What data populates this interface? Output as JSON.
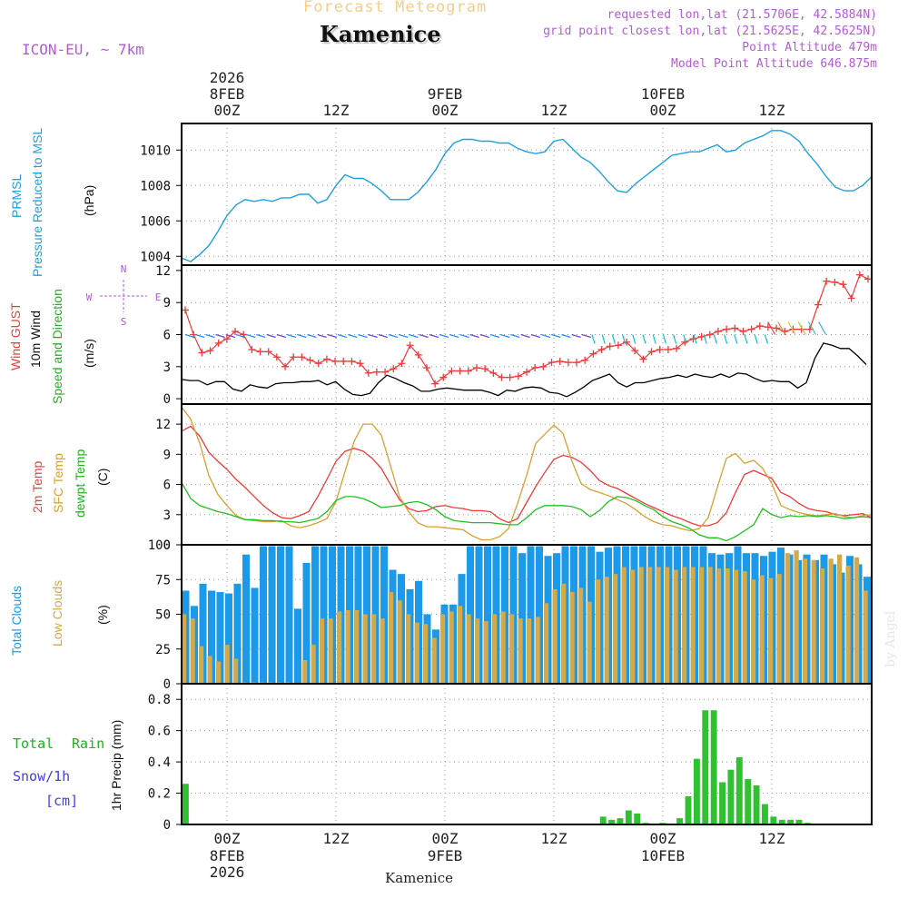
{
  "header": {
    "title": "Forecast Meteogram",
    "location": "Kamenice",
    "model": "ICON-EU, ~ 7km",
    "requested": "requested lon,lat (21.5706E, 42.5884N)",
    "gridpoint": "grid point closest lon,lat (21.5625E, 42.5625N)",
    "altitude": "Point Altitude 479m",
    "model_altitude": "Model Point Altitude 646.875m",
    "footer_location": "Kamenice",
    "watermark": "by Angel"
  },
  "time_axis": {
    "year": "2026",
    "top_labels": [
      "8FEB",
      "00Z",
      "12Z",
      "9FEB",
      "00Z",
      "12Z",
      "10FEB",
      "00Z",
      "12Z"
    ],
    "ticks": [
      {
        "hour": 24,
        "label": "00Z",
        "date": "8FEB",
        "year": "2026"
      },
      {
        "hour": 36,
        "label": "12Z",
        "date": "",
        "year": ""
      },
      {
        "hour": 48,
        "label": "00Z",
        "date": "9FEB",
        "year": ""
      },
      {
        "hour": 60,
        "label": "12Z",
        "date": "",
        "year": ""
      },
      {
        "hour": 72,
        "label": "00Z",
        "date": "10FEB",
        "year": ""
      },
      {
        "hour": 84,
        "label": "12Z",
        "date": "",
        "year": ""
      }
    ],
    "range": [
      19,
      95
    ]
  },
  "labels": {
    "p1": [
      "PRMSL",
      "Pressure Reduced to MSL",
      "(hPa)"
    ],
    "p2": [
      "Wind GUST",
      "10m Wind",
      "Speed and Direction",
      "(m/s)"
    ],
    "p2_compass": {
      "n": "N",
      "s": "S",
      "w": "W",
      "e": "E"
    },
    "p3": [
      "2m Temp",
      "SFC Temp",
      "dewpt Temp",
      "(C)"
    ],
    "p4": [
      "Total Clouds",
      "Low Clouds",
      "(%)"
    ],
    "p5": [
      "Total",
      "Rain",
      "Snow/1h",
      "[cm]",
      "1hr Precip (mm)"
    ]
  },
  "colors": {
    "pressure": "#1fa0e0",
    "gust": "#ef3b3b",
    "wind": "#000000",
    "windlabel": "#20b020",
    "temp2m": "#ef3b3b",
    "tempsfc": "#d8a030",
    "dewpt": "#20c020",
    "totalclouds": "#1a9ae8",
    "lowclouds": "#d4a94a",
    "rain": "#2ec22e",
    "snow": "#4040e0",
    "purple": "#b35bd6"
  },
  "chart_data": [
    {
      "type": "line",
      "title": "PRMSL Pressure Reduced to MSL",
      "ylabel": "hPa",
      "ylim": [
        1003.5,
        1011.5
      ],
      "yticks": [
        1004,
        1006,
        1008,
        1010
      ],
      "series": [
        {
          "name": "PRMSL",
          "x": [
            19,
            20,
            21,
            22,
            23,
            24,
            25,
            26,
            27,
            28,
            29,
            30,
            31,
            32,
            33,
            34,
            35,
            36,
            37,
            38,
            39,
            40,
            41,
            42,
            43,
            44,
            45,
            46,
            47,
            48,
            49,
            50,
            51,
            52,
            53,
            54,
            55,
            56,
            57,
            58,
            59,
            60,
            61,
            62,
            63,
            64,
            65,
            66,
            67,
            68,
            69,
            70,
            71,
            72,
            73,
            74,
            75,
            76,
            77,
            78,
            79,
            80,
            81,
            82,
            83,
            84,
            85,
            86,
            87,
            88,
            89,
            90,
            91,
            92,
            93,
            94,
            95
          ],
          "values": [
            1003.9,
            1003.7,
            1004.1,
            1004.6,
            1005.4,
            1006.3,
            1006.9,
            1007.2,
            1007.1,
            1007.2,
            1007.1,
            1007.3,
            1007.3,
            1007.5,
            1007.5,
            1007.0,
            1007.2,
            1008.0,
            1008.6,
            1008.4,
            1008.4,
            1008.1,
            1007.7,
            1007.2,
            1007.2,
            1007.2,
            1007.6,
            1008.2,
            1008.9,
            1009.8,
            1010.4,
            1010.6,
            1010.6,
            1010.5,
            1010.5,
            1010.4,
            1010.4,
            1010.1,
            1009.9,
            1009.8,
            1009.9,
            1010.5,
            1010.6,
            1010.1,
            1009.6,
            1009.3,
            1008.8,
            1008.2,
            1007.7,
            1007.6,
            1008.1,
            1008.5,
            1008.9,
            1009.3,
            1009.7,
            1009.8,
            1009.9,
            1009.9,
            1010.1,
            1010.3,
            1009.9,
            1010.0,
            1010.4,
            1010.6,
            1010.8,
            1011.1,
            1011.1,
            1010.9,
            1010.5,
            1009.8,
            1009.2,
            1008.5,
            1007.9,
            1007.7,
            1007.7,
            1008.0,
            1008.5
          ]
        }
      ]
    },
    {
      "type": "line",
      "title": "Wind GUST / 10m Wind Speed and Direction",
      "ylabel": "m/s",
      "ylim": [
        -0.5,
        12.5
      ],
      "yticks": [
        0,
        3,
        6,
        9,
        12
      ],
      "series": [
        {
          "name": "Wind GUST",
          "values": [
            8.3,
            6.0,
            4.3,
            4.5,
            5.2,
            5.6,
            6.3,
            6.0,
            4.6,
            4.4,
            4.4,
            3.9,
            3.0,
            3.9,
            3.9,
            3.6,
            3.3,
            3.7,
            3.5,
            3.5,
            3.5,
            3.3,
            2.4,
            2.5,
            2.5,
            2.8,
            3.3,
            5.0,
            4.1,
            2.9,
            1.4,
            2.0,
            2.6,
            2.6,
            2.6,
            2.9,
            2.8,
            2.4,
            2.0,
            2.0,
            2.1,
            2.5,
            2.9,
            3.0,
            3.4,
            3.5,
            3.4,
            3.4,
            3.6,
            4.2,
            4.6,
            4.9,
            5.0,
            5.3,
            4.5,
            3.7,
            4.4,
            4.6,
            4.6,
            4.7,
            5.3,
            5.6,
            5.8,
            6.0,
            6.3,
            6.5,
            6.6,
            6.3,
            6.5,
            6.8,
            6.7,
            6.6,
            6.3,
            6.5,
            6.5,
            6.5,
            8.8,
            11.0,
            10.9,
            10.7,
            9.4,
            11.6,
            11.2
          ]
        },
        {
          "name": "10m Wind",
          "values": [
            1.8,
            1.7,
            1.7,
            1.3,
            1.6,
            1.6,
            0.9,
            0.7,
            1.3,
            1.1,
            1.0,
            1.4,
            1.5,
            1.5,
            1.6,
            1.6,
            1.7,
            1.3,
            1.6,
            0.9,
            0.4,
            0.3,
            0.5,
            1.5,
            2.2,
            1.9,
            1.5,
            1.2,
            0.7,
            0.7,
            0.9,
            1.0,
            0.9,
            0.8,
            0.8,
            0.8,
            0.6,
            0.3,
            0.8,
            0.7,
            1.0,
            1.1,
            1.0,
            0.6,
            0.5,
            0.2,
            0.6,
            1.1,
            1.7,
            2.0,
            2.3,
            1.5,
            1.1,
            1.5,
            1.5,
            1.7,
            1.9,
            2.0,
            2.2,
            2.0,
            2.3,
            2.1,
            2.0,
            2.3,
            2.0,
            2.4,
            2.3,
            1.9,
            1.6,
            1.7,
            1.6,
            1.6,
            1.0,
            1.5,
            3.8,
            5.2,
            5.0,
            4.7,
            4.7,
            4.0,
            3.2
          ]
        }
      ]
    },
    {
      "type": "line",
      "title": "2m Temp / SFC Temp / dewpt Temp",
      "ylabel": "C",
      "ylim": [
        0,
        14
      ],
      "yticks": [
        0,
        3,
        6,
        9,
        12
      ],
      "series": [
        {
          "name": "2m Temp",
          "x": [
            19,
            20,
            21,
            22,
            23,
            24,
            25,
            26,
            27,
            28,
            29,
            30,
            31,
            32,
            33,
            34,
            35,
            36,
            37,
            38,
            39,
            40,
            41,
            42,
            43,
            44,
            45,
            46,
            47,
            48,
            49,
            50,
            51,
            52,
            53,
            54,
            55,
            56,
            57,
            58,
            59,
            60,
            61,
            62,
            63,
            64,
            65,
            66,
            67,
            68,
            69,
            70,
            71,
            72,
            73,
            74,
            75,
            76,
            77,
            78,
            79,
            80,
            81,
            82,
            83,
            84,
            85,
            86,
            87,
            88,
            89,
            90,
            91,
            92,
            93,
            94,
            95
          ],
          "values": [
            11.3,
            11.8,
            10.8,
            9.2,
            8.3,
            7.5,
            6.5,
            5.7,
            4.8,
            3.9,
            3.2,
            2.7,
            2.6,
            2.9,
            3.3,
            4.8,
            6.5,
            8.3,
            9.3,
            9.6,
            9.3,
            8.6,
            7.6,
            6.0,
            4.5,
            3.6,
            3.3,
            3.4,
            3.8,
            3.9,
            3.7,
            3.6,
            3.4,
            3.4,
            3.3,
            2.6,
            2.2,
            2.6,
            4.2,
            5.8,
            7.2,
            8.5,
            8.9,
            8.7,
            8.2,
            7.4,
            6.4,
            5.9,
            5.6,
            5.1,
            4.6,
            4.1,
            3.7,
            3.3,
            2.9,
            2.6,
            2.2,
            1.9,
            1.9,
            2.2,
            3.2,
            5.2,
            7.0,
            7.4,
            7.0,
            6.6,
            5.2,
            4.8,
            4.1,
            3.6,
            3.4,
            3.3,
            3.0,
            2.9,
            3.0,
            3.1,
            2.7
          ]
        },
        {
          "name": "SFC Temp",
          "values": [
            13.7,
            12.5,
            10.1,
            6.9,
            5.0,
            3.9,
            2.9,
            2.5,
            2.4,
            2.3,
            2.3,
            2.4,
            1.9,
            1.7,
            1.9,
            2.2,
            2.6,
            4.3,
            7.3,
            10.3,
            12.0,
            12.0,
            10.9,
            7.9,
            4.8,
            3.3,
            2.2,
            1.8,
            1.8,
            1.7,
            1.6,
            1.5,
            0.9,
            0.5,
            0.5,
            0.8,
            1.6,
            4.1,
            6.9,
            10.1,
            11.0,
            11.9,
            11.1,
            8.3,
            6.1,
            5.5,
            5.2,
            4.9,
            4.5,
            4.1,
            3.5,
            2.8,
            2.3,
            2.0,
            1.9,
            1.6,
            1.4,
            1.6,
            2.7,
            5.7,
            8.6,
            9.1,
            8.1,
            8.4,
            7.6,
            6.1,
            3.9,
            3.5,
            3.2,
            3.0,
            2.9,
            3.0,
            3.1,
            2.8,
            2.7,
            2.9,
            3.0
          ]
        },
        {
          "name": "dewpt Temp",
          "values": [
            6.2,
            4.6,
            3.9,
            3.6,
            3.3,
            3.1,
            2.8,
            2.5,
            2.5,
            2.4,
            2.4,
            2.3,
            2.3,
            2.2,
            2.4,
            2.6,
            3.3,
            4.4,
            4.8,
            4.8,
            4.6,
            4.2,
            3.7,
            3.8,
            3.9,
            4.2,
            4.3,
            4.0,
            3.5,
            2.8,
            2.4,
            2.3,
            2.2,
            2.2,
            2.2,
            2.1,
            2.0,
            2.0,
            2.7,
            3.5,
            3.9,
            3.9,
            3.9,
            3.8,
            3.5,
            2.8,
            3.4,
            4.3,
            4.8,
            4.7,
            4.4,
            3.9,
            3.5,
            2.8,
            2.3,
            2.0,
            1.6,
            1.0,
            0.7,
            0.7,
            0.4,
            0.8,
            1.4,
            2.0,
            3.6,
            3.0,
            2.7,
            2.9,
            2.8,
            2.9,
            2.8,
            2.9,
            2.8,
            2.6,
            2.7,
            2.8,
            2.7
          ]
        }
      ]
    },
    {
      "type": "bar",
      "title": "Total Clouds / Low Clouds",
      "ylabel": "%",
      "ylim": [
        0,
        100
      ],
      "yticks": [
        0,
        25,
        50,
        75,
        100
      ],
      "series": [
        {
          "name": "Total Clouds",
          "values": [
            67,
            56,
            72,
            67,
            66,
            65,
            72,
            93,
            69,
            99,
            99,
            99,
            99,
            54,
            87,
            99,
            99,
            99,
            99,
            99,
            99,
            99,
            99,
            99,
            82,
            79,
            68,
            74,
            50,
            39,
            57,
            57,
            79,
            99,
            99,
            99,
            99,
            99,
            99,
            94,
            99,
            99,
            92,
            94,
            99,
            99,
            99,
            99,
            95,
            98,
            99,
            99,
            99,
            99,
            99,
            99,
            99,
            99,
            99,
            99,
            99,
            94,
            93,
            94,
            99,
            94,
            94,
            92,
            95,
            98,
            93,
            89,
            93,
            89,
            93,
            86,
            80,
            92,
            86,
            77
          ]
        },
        {
          "name": "Low Clouds",
          "values": [
            50,
            47,
            27,
            20,
            16,
            28,
            18,
            1,
            1,
            1,
            1,
            1,
            1,
            0,
            17,
            28,
            47,
            47,
            52,
            53,
            53,
            50,
            50,
            47,
            66,
            60,
            50,
            44,
            43,
            33,
            50,
            52,
            56,
            50,
            47,
            45,
            50,
            52,
            50,
            47,
            47,
            48,
            58,
            68,
            72,
            66,
            69,
            59,
            75,
            77,
            79,
            84,
            82,
            84,
            84,
            84,
            84,
            82,
            84,
            84,
            84,
            84,
            83,
            83,
            82,
            81,
            75,
            78,
            76,
            79,
            94,
            96,
            90,
            89,
            83,
            90,
            93,
            85,
            91,
            67,
            62
          ]
        }
      ]
    },
    {
      "type": "bar",
      "title": "1hr Precip",
      "ylabel": "1hr Precip (mm)",
      "ylim": [
        0,
        0.9
      ],
      "yticks": [
        0,
        0.2,
        0.4,
        0.6,
        0.8
      ],
      "series": [
        {
          "name": "Total Rain",
          "values": [
            0.26,
            0,
            0,
            0,
            0,
            0,
            0,
            0,
            0,
            0,
            0,
            0,
            0,
            0,
            0,
            0,
            0,
            0,
            0,
            0,
            0,
            0,
            0,
            0,
            0,
            0,
            0,
            0,
            0,
            0,
            0,
            0,
            0,
            0,
            0,
            0,
            0,
            0,
            0,
            0,
            0,
            0,
            0,
            0,
            0,
            0,
            0,
            0,
            0,
            0.05,
            0.03,
            0.04,
            0.09,
            0.07,
            0.01,
            0,
            0.01,
            0,
            0.04,
            0.18,
            0.42,
            0.73,
            0.73,
            0.27,
            0.35,
            0.43,
            0.29,
            0.25,
            0.13,
            0.05,
            0.03,
            0.03,
            0.03,
            0.01,
            0,
            0,
            0,
            0,
            0,
            0,
            0
          ]
        },
        {
          "name": "Snow/1h",
          "values": []
        }
      ]
    }
  ]
}
